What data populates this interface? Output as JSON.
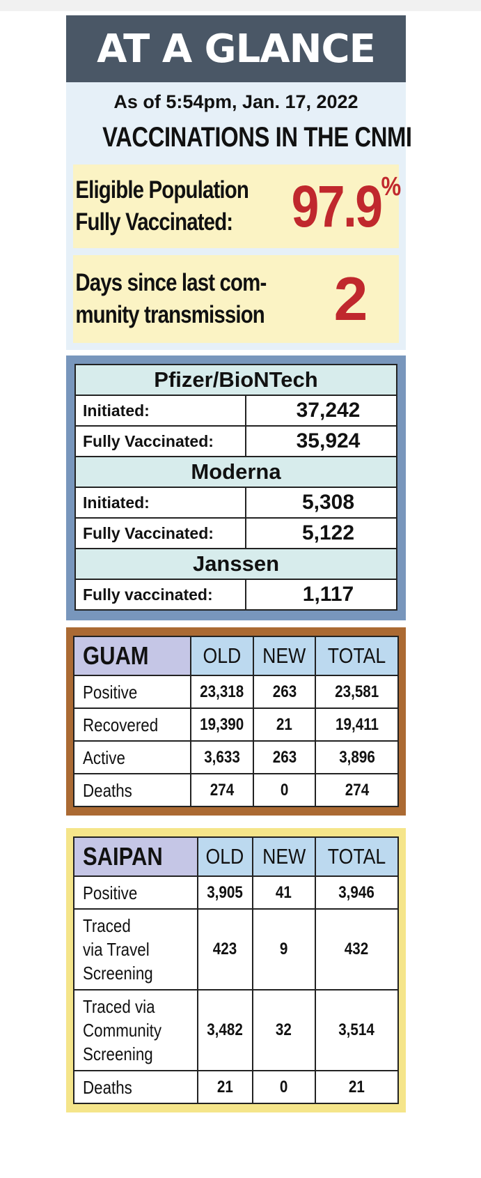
{
  "banner": {
    "title": "AT A GLANCE"
  },
  "as_of": "As of 5:54pm, Jan. 17, 2022",
  "section_title": "VACCINATIONS IN THE CNMI",
  "eligible": {
    "label_line1": "Eligible Population",
    "label_line2": "Fully Vaccinated:",
    "value": "97.9",
    "unit": "%"
  },
  "days_since": {
    "label_line1": "Days since last com-",
    "label_line2": "munity transmission",
    "value": "2"
  },
  "vaccines": [
    {
      "brand": "Pfizer/BioNTech",
      "rows": [
        {
          "label": "Initiated:",
          "value": "37,242"
        },
        {
          "label": "Fully Vaccinated:",
          "value": "35,924"
        }
      ]
    },
    {
      "brand": "Moderna",
      "rows": [
        {
          "label": "Initiated:",
          "value": "5,308"
        },
        {
          "label": "Fully Vaccinated:",
          "value": "5,122"
        }
      ]
    },
    {
      "brand": "Janssen",
      "rows": [
        {
          "label": "Fully vaccinated:",
          "value": "1,117"
        }
      ]
    }
  ],
  "guam": {
    "place": "GUAM",
    "headers": [
      "OLD",
      "NEW",
      "TOTAL"
    ],
    "rows": [
      {
        "label": "Positive",
        "old": "23,318",
        "new": "263",
        "total": "23,581"
      },
      {
        "label": "Recovered",
        "old": "19,390",
        "new": "21",
        "total": "19,411"
      },
      {
        "label": "Active",
        "old": "3,633",
        "new": "263",
        "total": "3,896"
      },
      {
        "label": "Deaths",
        "old": "274",
        "new": "0",
        "total": "274"
      }
    ]
  },
  "saipan": {
    "place": "SAIPAN",
    "headers": [
      "OLD",
      "NEW",
      "TOTAL"
    ],
    "rows": [
      {
        "label_lines": [
          "Positive"
        ],
        "old": "3,905",
        "new": "41",
        "total": "3,946"
      },
      {
        "label_lines": [
          "Traced",
          "via Travel",
          "Screening"
        ],
        "old": "423",
        "new": "9",
        "total": "432"
      },
      {
        "label_lines": [
          "Traced via",
          "Community",
          "Screening"
        ],
        "old": "3,482",
        "new": "32",
        "total": "3,514"
      },
      {
        "label_lines": [
          "Deaths"
        ],
        "old": "21",
        "new": "0",
        "total": "21"
      }
    ]
  },
  "colors": {
    "banner_bg": "#4a5766",
    "vacc_bg": "#e6f0f8",
    "stat_bg": "#fbf3c4",
    "stat_value": "#c0282d",
    "vaccine_frame": "#7896bc",
    "brand_header": "#d7ecec",
    "guam_frame": "#ab6a33",
    "saipan_frame": "#f5e58a",
    "col_header": "#bcd9ef",
    "place_header": "#c5c6e6"
  }
}
